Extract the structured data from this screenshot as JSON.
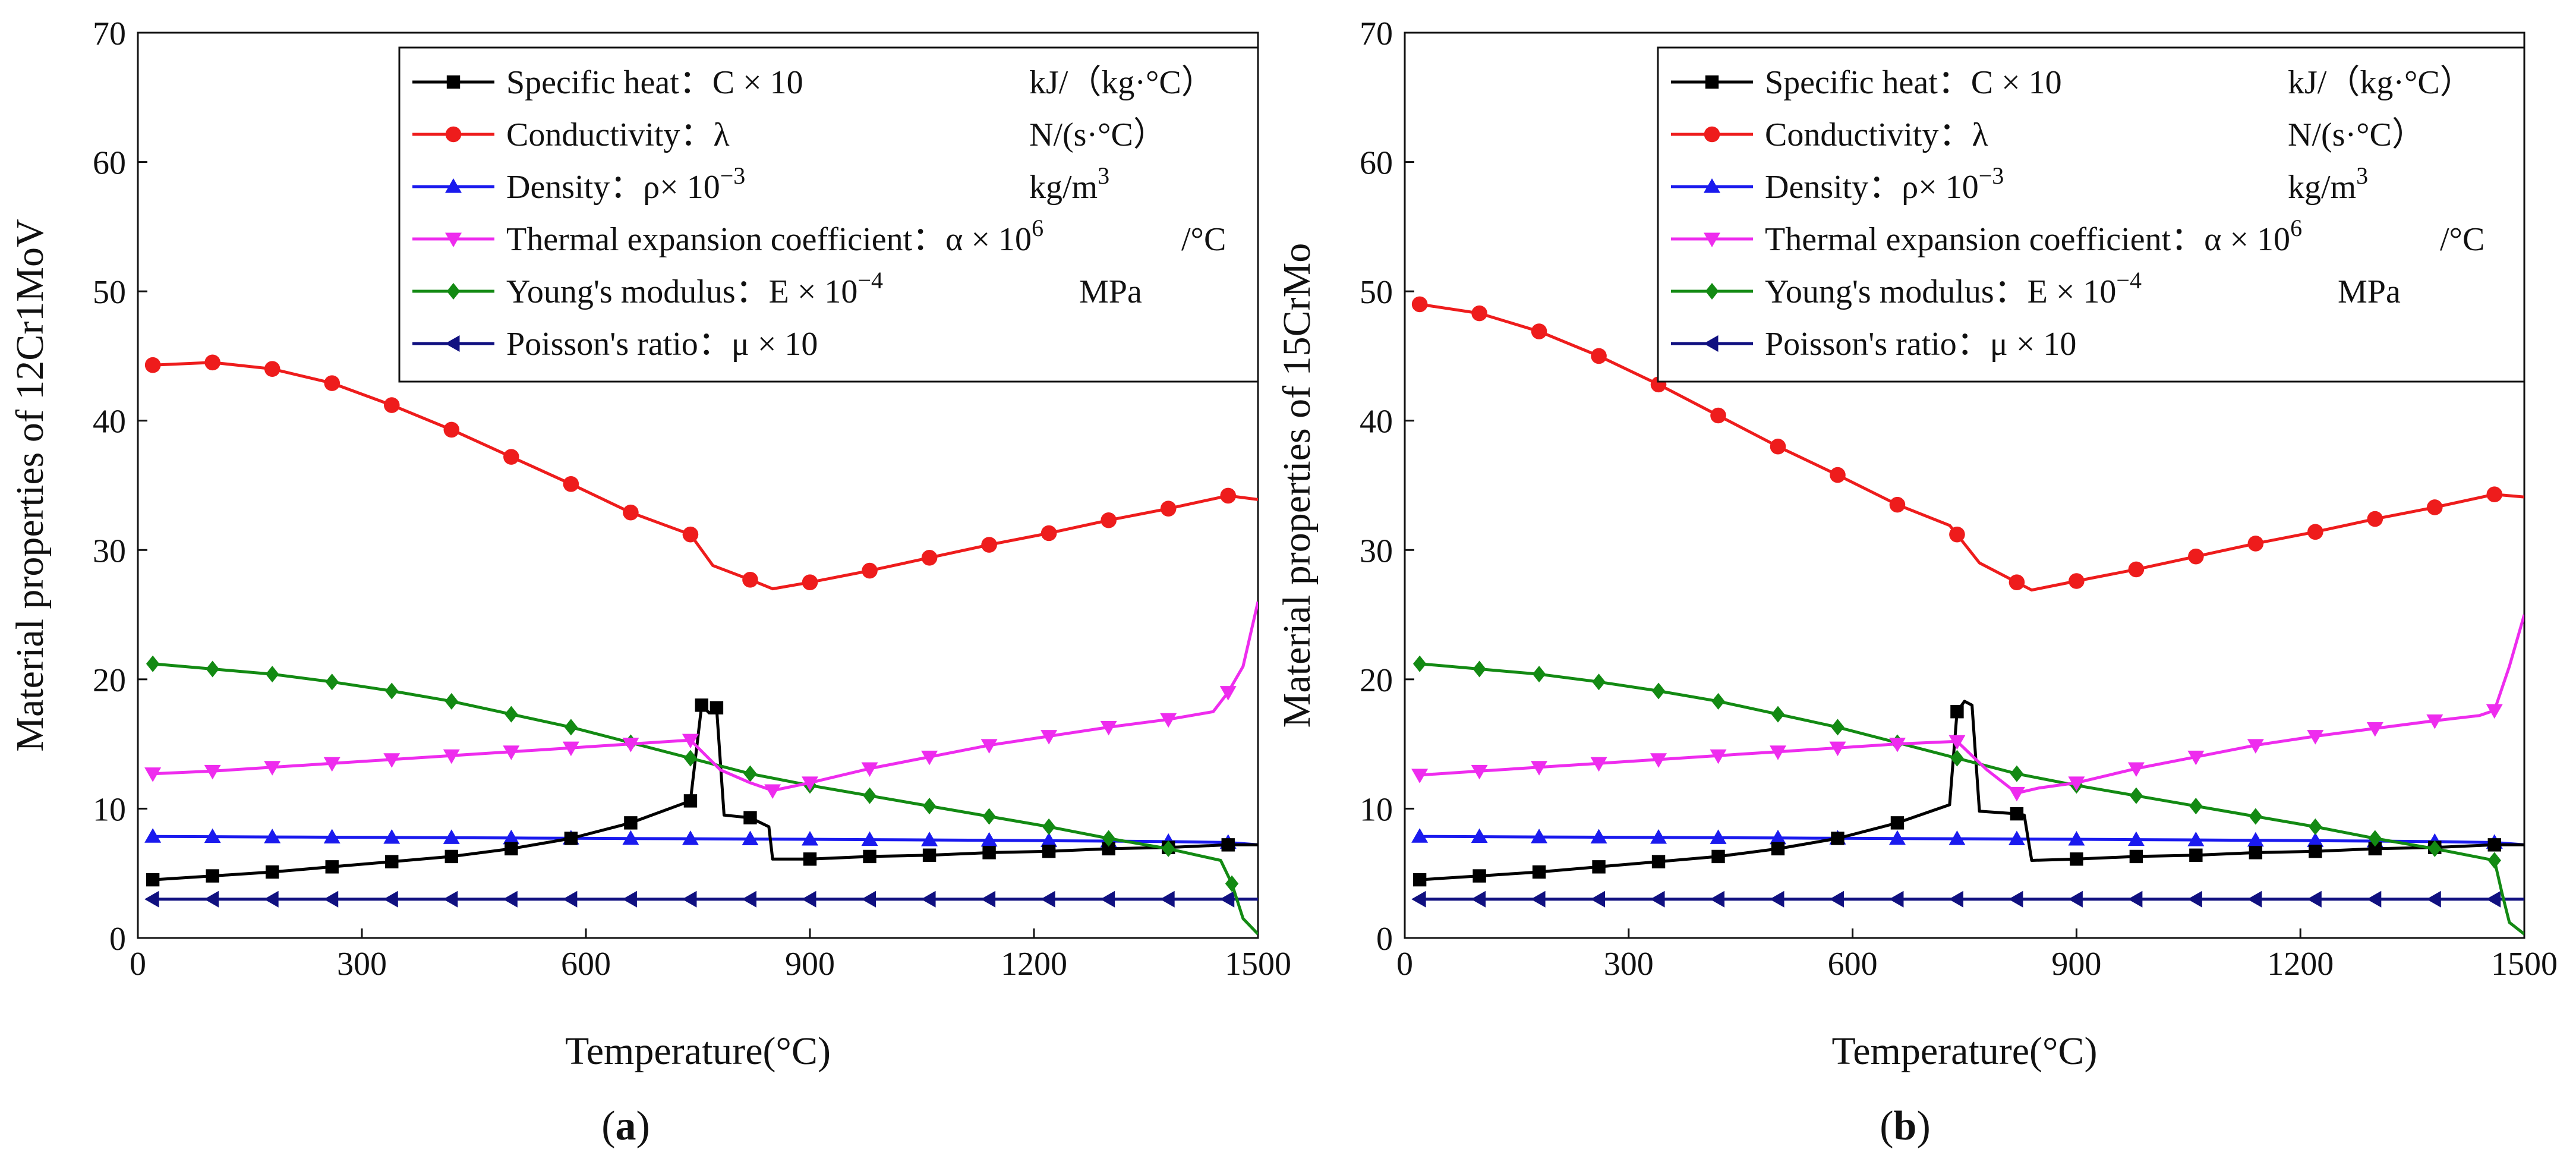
{
  "colors": {
    "specific_heat": "#000000",
    "conductivity": "#ee1c1c",
    "density": "#1a1aee",
    "thermal_expansion": "#ee2cee",
    "youngs_modulus": "#138a13",
    "poisson": "#101080",
    "axis": "#111111",
    "background": "#ffffff"
  },
  "legend": [
    {
      "key": "specific_heat",
      "name": "Specific heat：C × 10",
      "unit": "kJ/（kg·°C）",
      "marker": "square"
    },
    {
      "key": "conductivity",
      "name": "Conductivity：λ",
      "unit": "N/(s·°C）",
      "marker": "circle"
    },
    {
      "key": "density",
      "name": "Density：ρ× 10",
      "sup": "−3",
      "unit": "kg/m",
      "unit_sup": "3",
      "marker": "triangle-up"
    },
    {
      "key": "thermal_expansion",
      "name": "Thermal expansion coefficient：α  ×  10",
      "sup": "6",
      "unit": "/°C",
      "marker": "triangle-down"
    },
    {
      "key": "youngs_modulus",
      "name": "Young's modulus：E  ×  10",
      "sup": "−4",
      "unit": "MPa",
      "marker": "diamond"
    },
    {
      "key": "poisson",
      "name": "Poisson's ratio：μ × 10",
      "unit": "",
      "marker": "triangle-left"
    }
  ],
  "chart_data": [
    {
      "type": "line",
      "panel_label": "a",
      "xlabel": "Temperature(°C)",
      "ylabel": "Material properties of 12Cr1MoV",
      "xlim": [
        0,
        1500
      ],
      "ylim": [
        0,
        70
      ],
      "xticks": [
        0,
        300,
        600,
        900,
        1200,
        1500
      ],
      "yticks": [
        0,
        10,
        20,
        30,
        40,
        50,
        60,
        70
      ],
      "legend_position": "top-right",
      "series": [
        {
          "key": "specific_heat",
          "x": [
            20,
            100,
            180,
            260,
            340,
            420,
            500,
            580,
            660,
            740,
            755,
            765,
            775,
            785,
            820,
            845,
            850,
            900,
            980,
            1060,
            1140,
            1220,
            1300,
            1380,
            1460,
            1500
          ],
          "y": [
            4.5,
            4.8,
            5.1,
            5.5,
            5.9,
            6.3,
            6.9,
            7.7,
            8.9,
            10.6,
            18.0,
            17.4,
            17.8,
            9.5,
            9.3,
            8.6,
            6.1,
            6.1,
            6.3,
            6.4,
            6.6,
            6.7,
            6.9,
            7.0,
            7.2,
            7.2
          ],
          "markers": [
            true,
            true,
            true,
            true,
            true,
            true,
            true,
            true,
            true,
            true,
            true,
            false,
            true,
            false,
            true,
            false,
            false,
            true,
            true,
            true,
            true,
            true,
            true,
            true,
            true,
            false
          ]
        },
        {
          "key": "conductivity",
          "x": [
            20,
            100,
            180,
            260,
            340,
            420,
            500,
            580,
            660,
            740,
            770,
            820,
            850,
            900,
            980,
            1060,
            1140,
            1220,
            1300,
            1380,
            1460,
            1500
          ],
          "y": [
            44.3,
            44.5,
            44.0,
            42.9,
            41.2,
            39.3,
            37.2,
            35.1,
            32.9,
            31.2,
            28.8,
            27.7,
            27.0,
            27.5,
            28.4,
            29.4,
            30.4,
            31.3,
            32.3,
            33.2,
            34.2,
            33.9
          ],
          "markers": [
            true,
            true,
            true,
            true,
            true,
            true,
            true,
            true,
            true,
            true,
            false,
            true,
            false,
            true,
            true,
            true,
            true,
            true,
            true,
            true,
            true,
            false
          ]
        },
        {
          "key": "density",
          "x": [
            20,
            100,
            180,
            260,
            340,
            420,
            500,
            580,
            660,
            740,
            820,
            900,
            980,
            1060,
            1140,
            1220,
            1300,
            1380,
            1460,
            1500
          ],
          "y": [
            7.85,
            7.83,
            7.81,
            7.79,
            7.77,
            7.75,
            7.73,
            7.71,
            7.69,
            7.67,
            7.65,
            7.63,
            7.6,
            7.58,
            7.55,
            7.52,
            7.49,
            7.45,
            7.38,
            7.2
          ],
          "markers": [
            true,
            true,
            true,
            true,
            true,
            true,
            true,
            true,
            true,
            true,
            true,
            true,
            true,
            true,
            true,
            true,
            true,
            true,
            true,
            false
          ]
        },
        {
          "key": "thermal_expansion",
          "x": [
            20,
            100,
            180,
            260,
            340,
            420,
            500,
            580,
            660,
            740,
            780,
            820,
            850,
            900,
            980,
            1060,
            1140,
            1220,
            1300,
            1380,
            1440,
            1460,
            1480,
            1500
          ],
          "y": [
            12.7,
            12.9,
            13.2,
            13.5,
            13.8,
            14.1,
            14.4,
            14.7,
            15.0,
            15.3,
            13.0,
            12.0,
            11.4,
            12.0,
            13.1,
            14.0,
            14.9,
            15.6,
            16.3,
            16.9,
            17.5,
            19.0,
            21.0,
            26.0
          ],
          "markers": [
            true,
            true,
            true,
            true,
            true,
            true,
            true,
            true,
            true,
            true,
            false,
            false,
            true,
            true,
            true,
            true,
            true,
            true,
            true,
            true,
            false,
            true,
            false,
            false
          ]
        },
        {
          "key": "youngs_modulus",
          "x": [
            20,
            100,
            180,
            260,
            340,
            420,
            500,
            580,
            660,
            740,
            820,
            900,
            980,
            1060,
            1140,
            1220,
            1300,
            1380,
            1450,
            1465,
            1480,
            1500
          ],
          "y": [
            21.2,
            20.8,
            20.4,
            19.8,
            19.1,
            18.3,
            17.3,
            16.3,
            15.1,
            13.9,
            12.7,
            11.8,
            11.0,
            10.2,
            9.4,
            8.6,
            7.7,
            6.9,
            6.0,
            4.2,
            1.5,
            0.3
          ],
          "markers": [
            true,
            true,
            true,
            true,
            true,
            true,
            true,
            true,
            true,
            true,
            true,
            true,
            true,
            true,
            true,
            true,
            true,
            true,
            false,
            true,
            false,
            false
          ]
        },
        {
          "key": "poisson",
          "x": [
            20,
            100,
            180,
            260,
            340,
            420,
            500,
            580,
            660,
            740,
            820,
            900,
            980,
            1060,
            1140,
            1220,
            1300,
            1380,
            1460,
            1500
          ],
          "y": [
            3.0,
            3.0,
            3.0,
            3.0,
            3.0,
            3.0,
            3.0,
            3.0,
            3.0,
            3.0,
            3.0,
            3.0,
            3.0,
            3.0,
            3.0,
            3.0,
            3.0,
            3.0,
            3.0,
            3.0
          ],
          "markers": [
            true,
            true,
            true,
            true,
            true,
            true,
            true,
            true,
            true,
            true,
            true,
            true,
            true,
            true,
            true,
            true,
            true,
            true,
            true,
            false
          ]
        }
      ]
    },
    {
      "type": "line",
      "panel_label": "b",
      "xlabel": "Temperature(°C)",
      "ylabel": "Material properties of 15CrMo",
      "xlim": [
        0,
        1500
      ],
      "ylim": [
        0,
        70
      ],
      "xticks": [
        0,
        300,
        600,
        900,
        1200,
        1500
      ],
      "yticks": [
        0,
        10,
        20,
        30,
        40,
        50,
        60,
        70
      ],
      "legend_position": "top-right",
      "series": [
        {
          "key": "specific_heat",
          "x": [
            20,
            100,
            180,
            260,
            340,
            420,
            500,
            580,
            660,
            730,
            740,
            750,
            760,
            770,
            820,
            830,
            840,
            900,
            980,
            1060,
            1140,
            1220,
            1300,
            1380,
            1460,
            1500
          ],
          "y": [
            4.5,
            4.8,
            5.1,
            5.5,
            5.9,
            6.3,
            6.9,
            7.7,
            8.9,
            10.3,
            17.5,
            18.3,
            18.0,
            9.8,
            9.6,
            9.5,
            6.0,
            6.1,
            6.3,
            6.4,
            6.6,
            6.7,
            6.9,
            7.0,
            7.2,
            7.2
          ],
          "markers": [
            true,
            true,
            true,
            true,
            true,
            true,
            true,
            true,
            true,
            false,
            true,
            false,
            false,
            false,
            true,
            false,
            false,
            true,
            true,
            true,
            true,
            true,
            true,
            true,
            true,
            false
          ]
        },
        {
          "key": "conductivity",
          "x": [
            20,
            100,
            180,
            260,
            340,
            420,
            500,
            580,
            660,
            730,
            740,
            770,
            820,
            840,
            900,
            980,
            1060,
            1140,
            1220,
            1300,
            1380,
            1460,
            1500
          ],
          "y": [
            49.0,
            48.3,
            46.9,
            45.0,
            42.8,
            40.4,
            38.0,
            35.8,
            33.5,
            31.9,
            31.2,
            29.0,
            27.5,
            26.9,
            27.6,
            28.5,
            29.5,
            30.5,
            31.4,
            32.4,
            33.3,
            34.3,
            34.1
          ],
          "markers": [
            true,
            true,
            true,
            true,
            true,
            true,
            true,
            true,
            true,
            false,
            true,
            false,
            true,
            false,
            true,
            true,
            true,
            true,
            true,
            true,
            true,
            true,
            false
          ]
        },
        {
          "key": "density",
          "x": [
            20,
            100,
            180,
            260,
            340,
            420,
            500,
            580,
            660,
            740,
            820,
            900,
            980,
            1060,
            1140,
            1220,
            1300,
            1380,
            1460,
            1500
          ],
          "y": [
            7.85,
            7.83,
            7.81,
            7.79,
            7.77,
            7.75,
            7.73,
            7.71,
            7.69,
            7.67,
            7.65,
            7.63,
            7.6,
            7.58,
            7.55,
            7.52,
            7.49,
            7.45,
            7.38,
            7.2
          ],
          "markers": [
            true,
            true,
            true,
            true,
            true,
            true,
            true,
            true,
            true,
            true,
            true,
            true,
            true,
            true,
            true,
            true,
            true,
            true,
            true,
            false
          ]
        },
        {
          "key": "thermal_expansion",
          "x": [
            20,
            100,
            180,
            260,
            340,
            420,
            500,
            580,
            660,
            740,
            780,
            820,
            850,
            900,
            980,
            1060,
            1140,
            1220,
            1300,
            1380,
            1440,
            1460,
            1480,
            1500
          ],
          "y": [
            12.6,
            12.9,
            13.2,
            13.5,
            13.8,
            14.1,
            14.4,
            14.7,
            15.0,
            15.2,
            13.0,
            11.2,
            11.6,
            12.0,
            13.1,
            14.0,
            14.9,
            15.6,
            16.2,
            16.8,
            17.2,
            17.6,
            21.0,
            25.0
          ],
          "markers": [
            true,
            true,
            true,
            true,
            true,
            true,
            true,
            true,
            true,
            true,
            false,
            true,
            false,
            true,
            true,
            true,
            true,
            true,
            true,
            true,
            false,
            true,
            false,
            false
          ]
        },
        {
          "key": "youngs_modulus",
          "x": [
            20,
            100,
            180,
            260,
            340,
            420,
            500,
            580,
            660,
            740,
            820,
            900,
            980,
            1060,
            1140,
            1220,
            1300,
            1380,
            1460,
            1470,
            1480,
            1500
          ],
          "y": [
            21.2,
            20.8,
            20.4,
            19.8,
            19.1,
            18.3,
            17.3,
            16.3,
            15.1,
            13.9,
            12.7,
            11.8,
            11.0,
            10.2,
            9.4,
            8.6,
            7.7,
            6.9,
            6.0,
            3.5,
            1.2,
            0.3
          ],
          "markers": [
            true,
            true,
            true,
            true,
            true,
            true,
            true,
            true,
            true,
            true,
            true,
            true,
            true,
            true,
            true,
            true,
            true,
            true,
            true,
            false,
            false,
            false
          ]
        },
        {
          "key": "poisson",
          "x": [
            20,
            100,
            180,
            260,
            340,
            420,
            500,
            580,
            660,
            740,
            820,
            900,
            980,
            1060,
            1140,
            1220,
            1300,
            1380,
            1460,
            1500
          ],
          "y": [
            3.0,
            3.0,
            3.0,
            3.0,
            3.0,
            3.0,
            3.0,
            3.0,
            3.0,
            3.0,
            3.0,
            3.0,
            3.0,
            3.0,
            3.0,
            3.0,
            3.0,
            3.0,
            3.0,
            3.0
          ],
          "markers": [
            true,
            true,
            true,
            true,
            true,
            true,
            true,
            true,
            true,
            true,
            true,
            true,
            true,
            true,
            true,
            true,
            true,
            true,
            true,
            false
          ]
        }
      ]
    }
  ]
}
